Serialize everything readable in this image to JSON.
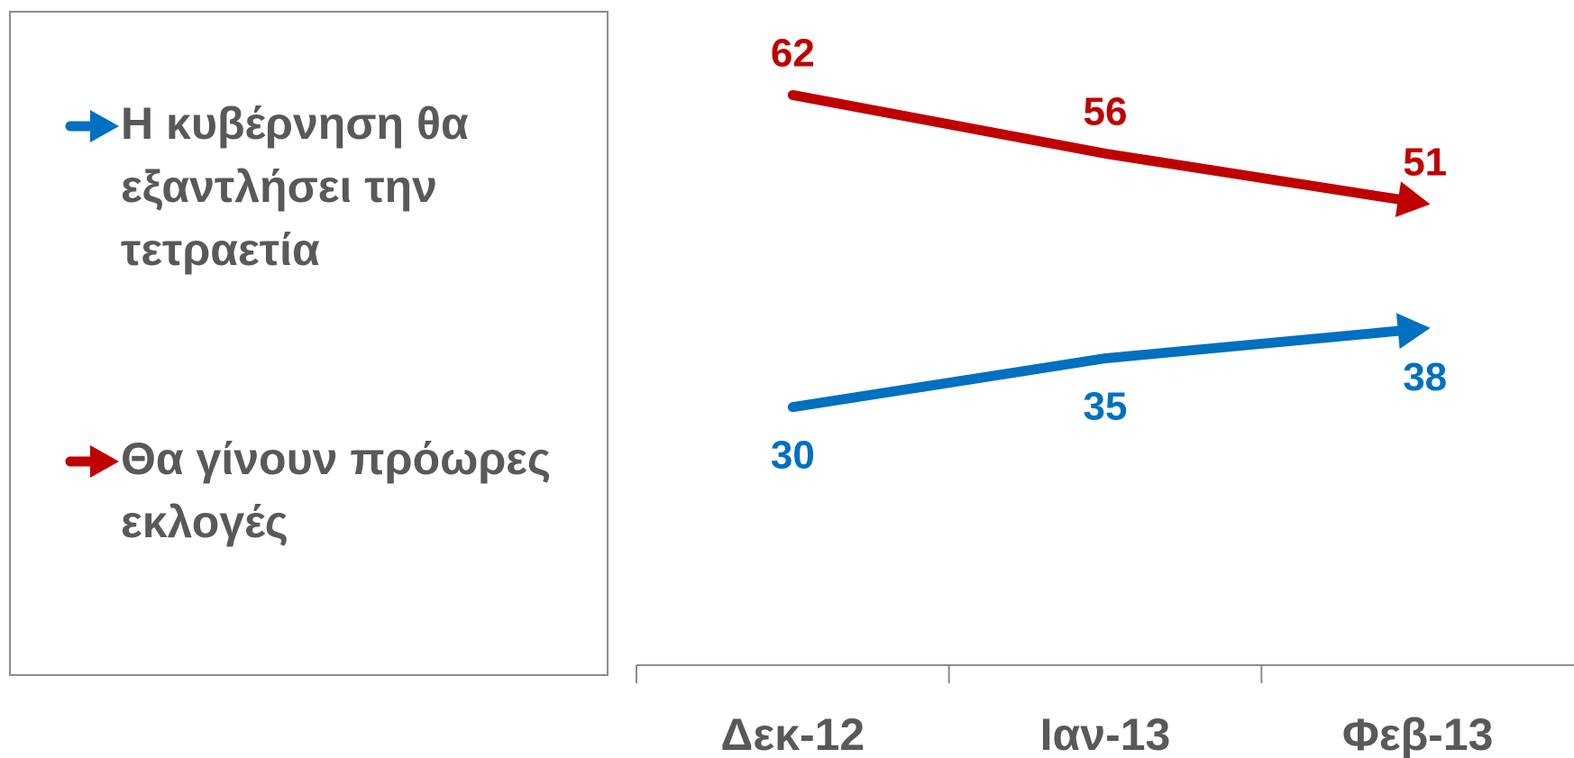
{
  "chart_data": {
    "type": "line",
    "categories": [
      "Δεκ-12",
      "Ιαν-13",
      "Φεβ-13"
    ],
    "series": [
      {
        "name": "Η κυβέρνηση θα εξαντλήσει την τετραετία",
        "values": [
          30,
          35,
          38
        ],
        "color": "#0070C0"
      },
      {
        "name": "Θα γίνουν πρόωρες εκλογές",
        "values": [
          62,
          56,
          51
        ],
        "color": "#C00000"
      }
    ],
    "title": "",
    "xlabel": "",
    "ylabel": "",
    "ylim": [
      0,
      70
    ],
    "grid": false,
    "legend_position": "left",
    "line_end_marker": "arrow"
  }
}
